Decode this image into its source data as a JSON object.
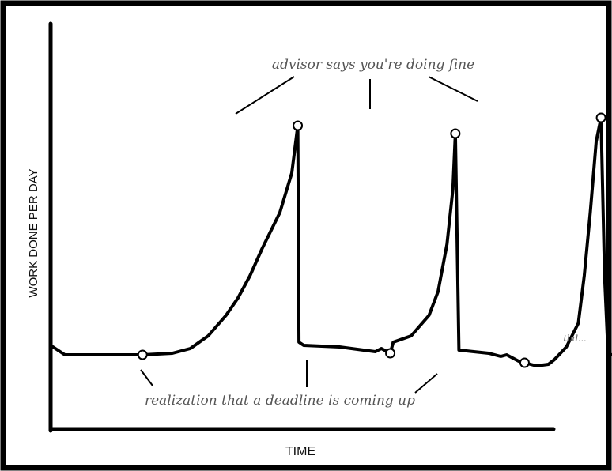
{
  "chart_data": {
    "type": "line",
    "xlabel": "TIME",
    "ylabel": "WORK DONE PER DAY",
    "grid": false,
    "legend": "none",
    "series": [
      {
        "x": [
          0,
          2,
          15,
          20,
          23,
          26,
          29,
          31,
          33,
          35,
          38,
          40,
          41,
          41.2,
          42,
          48,
          54,
          55,
          56.5,
          57,
          60,
          63,
          64.5,
          66,
          67,
          67.4,
          68,
          73,
          75,
          76,
          78,
          79,
          81,
          83,
          84,
          85,
          86,
          88,
          89,
          90,
          91,
          91.8,
          92.4,
          93,
          100,
          105,
          110
        ],
        "y": [
          0.5,
          0,
          0,
          0.1,
          0.4,
          1.2,
          2.5,
          3.6,
          5.0,
          6.7,
          9.0,
          11.5,
          14.5,
          0.8,
          0.6,
          0.5,
          0.2,
          0.4,
          0.1,
          0.8,
          1.2,
          2.5,
          4.0,
          7.0,
          10.5,
          14.0,
          0.3,
          0.1,
          -0.1,
          0.0,
          -0.4,
          -0.5,
          -0.7,
          -0.6,
          -0.3,
          0.1,
          0.5,
          2.0,
          5.0,
          9.0,
          13.5,
          15.0,
          5.0,
          0.0,
          0.1,
          0.0,
          0.0
        ]
      }
    ],
    "points": [
      {
        "x": 41,
        "y": 14.5
      },
      {
        "x": 67.4,
        "y": 14.0
      },
      {
        "x": 91.8,
        "y": 15.0
      },
      {
        "x": 15,
        "y": 0.0
      },
      {
        "x": 56.5,
        "y": 0.1
      },
      {
        "x": 79,
        "y": -0.5
      }
    ],
    "annotations": [
      {
        "text": "advisor says you're doing fine"
      },
      {
        "text": "realization that a deadline is coming up"
      },
      {
        "text": "tbd..."
      }
    ]
  }
}
